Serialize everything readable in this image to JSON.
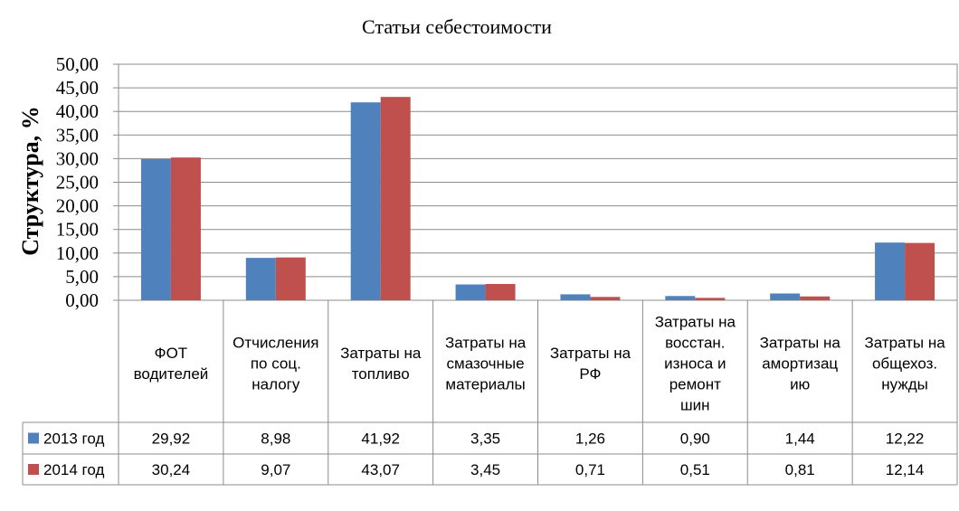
{
  "chart_data": {
    "type": "bar",
    "title": "Статьи себестоимости",
    "ylabel": "Структура,  %",
    "xlabel": "",
    "ylim": [
      0,
      50
    ],
    "ytick_step": 5,
    "ytick_labels": [
      "0,00",
      "5,00",
      "10,00",
      "15,00",
      "20,00",
      "25,00",
      "30,00",
      "35,00",
      "40,00",
      "45,00",
      "50,00"
    ],
    "grid": true,
    "legend_placement": "data-table-left",
    "categories": [
      [
        "ФОТ",
        "водителей"
      ],
      [
        "Отчисления",
        "по соц.",
        "налогу"
      ],
      [
        "Затраты на",
        "топливо"
      ],
      [
        "Затраты на",
        "смазочные",
        "материалы"
      ],
      [
        "Затраты на",
        "РФ"
      ],
      [
        "Затраты на",
        "восстан.",
        "износа и",
        "ремонт",
        "шин"
      ],
      [
        "Затраты на",
        "амортизац",
        "ию"
      ],
      [
        "Затраты на",
        "общехоз.",
        "нужды"
      ]
    ],
    "series": [
      {
        "name": "2013 год",
        "color": "#4F81BD",
        "values": [
          29.92,
          8.98,
          41.92,
          3.35,
          1.26,
          0.9,
          1.44,
          12.22
        ],
        "labels": [
          "29,92",
          "8,98",
          "41,92",
          "3,35",
          "1,26",
          "0,90",
          "1,44",
          "12,22"
        ]
      },
      {
        "name": "2014 год",
        "color": "#C0504D",
        "values": [
          30.24,
          9.07,
          43.07,
          3.45,
          0.71,
          0.51,
          0.81,
          12.14
        ],
        "labels": [
          "30,24",
          "9,07",
          "43,07",
          "3,45",
          "0,71",
          "0,51",
          "0,81",
          "12,14"
        ]
      }
    ]
  }
}
